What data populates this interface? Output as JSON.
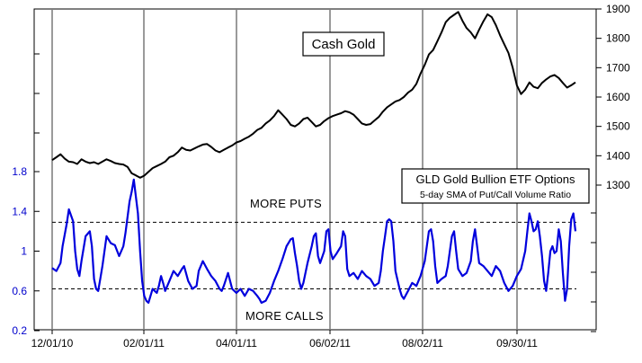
{
  "chart_data": {
    "type": "line",
    "x_tick_labels": [
      "12/01/10",
      "02/01/11",
      "04/01/11",
      "06/02/11",
      "08/02/11",
      "09/30/11"
    ],
    "gold_axis": {
      "ticks": [
        "1900",
        "1800",
        "1700",
        "1600",
        "1500",
        "1400",
        "1300"
      ],
      "ylim": [
        1300,
        1900
      ]
    },
    "ratio_axis": {
      "ticks": [
        "1.8",
        "1.4",
        "1",
        "0.6",
        "0.2"
      ],
      "ylim": [
        0.2,
        1.8
      ]
    },
    "gold_label": "Cash Gold",
    "options_title": "GLD Gold Bullion ETF Options",
    "options_subtitle": "5-day SMA of Put/Call Volume Ratio",
    "more_puts_label": "MORE PUTS",
    "more_calls_label": "MORE CALLS",
    "more_puts_level": 1.29,
    "more_calls_level": 0.62,
    "colors": {
      "gold_line": "#000000",
      "ratio_line": "#0000dd",
      "grid": "#808080",
      "ratio_tick": "#0000cc"
    },
    "series": [
      {
        "key": "gold",
        "color": "#000000",
        "points": [
          [
            0,
            1385
          ],
          [
            2,
            1395
          ],
          [
            4,
            1405
          ],
          [
            6,
            1390
          ],
          [
            8,
            1380
          ],
          [
            10,
            1378
          ],
          [
            12,
            1372
          ],
          [
            14,
            1388
          ],
          [
            16,
            1380
          ],
          [
            18,
            1375
          ],
          [
            20,
            1378
          ],
          [
            22,
            1372
          ],
          [
            24,
            1380
          ],
          [
            26,
            1388
          ],
          [
            28,
            1382
          ],
          [
            30,
            1375
          ],
          [
            32,
            1372
          ],
          [
            34,
            1370
          ],
          [
            36,
            1362
          ],
          [
            38,
            1340
          ],
          [
            40,
            1333
          ],
          [
            42,
            1325
          ],
          [
            44,
            1332
          ],
          [
            46,
            1345
          ],
          [
            48,
            1358
          ],
          [
            50,
            1365
          ],
          [
            52,
            1372
          ],
          [
            54,
            1380
          ],
          [
            56,
            1395
          ],
          [
            58,
            1400
          ],
          [
            60,
            1412
          ],
          [
            62,
            1428
          ],
          [
            64,
            1420
          ],
          [
            66,
            1418
          ],
          [
            68,
            1425
          ],
          [
            70,
            1432
          ],
          [
            72,
            1438
          ],
          [
            74,
            1440
          ],
          [
            76,
            1430
          ],
          [
            78,
            1418
          ],
          [
            80,
            1412
          ],
          [
            82,
            1420
          ],
          [
            84,
            1428
          ],
          [
            86,
            1435
          ],
          [
            88,
            1445
          ],
          [
            90,
            1450
          ],
          [
            92,
            1458
          ],
          [
            94,
            1465
          ],
          [
            96,
            1475
          ],
          [
            98,
            1488
          ],
          [
            100,
            1495
          ],
          [
            102,
            1510
          ],
          [
            104,
            1520
          ],
          [
            106,
            1535
          ],
          [
            108,
            1555
          ],
          [
            110,
            1540
          ],
          [
            112,
            1525
          ],
          [
            114,
            1505
          ],
          [
            116,
            1500
          ],
          [
            118,
            1510
          ],
          [
            120,
            1525
          ],
          [
            122,
            1530
          ],
          [
            124,
            1515
          ],
          [
            126,
            1500
          ],
          [
            128,
            1505
          ],
          [
            130,
            1518
          ],
          [
            132,
            1528
          ],
          [
            134,
            1535
          ],
          [
            136,
            1540
          ],
          [
            138,
            1545
          ],
          [
            140,
            1552
          ],
          [
            142,
            1548
          ],
          [
            144,
            1540
          ],
          [
            146,
            1525
          ],
          [
            148,
            1510
          ],
          [
            150,
            1505
          ],
          [
            152,
            1508
          ],
          [
            154,
            1520
          ],
          [
            156,
            1532
          ],
          [
            158,
            1550
          ],
          [
            160,
            1565
          ],
          [
            162,
            1575
          ],
          [
            164,
            1585
          ],
          [
            166,
            1590
          ],
          [
            168,
            1600
          ],
          [
            170,
            1615
          ],
          [
            172,
            1625
          ],
          [
            174,
            1645
          ],
          [
            176,
            1680
          ],
          [
            178,
            1710
          ],
          [
            180,
            1745
          ],
          [
            182,
            1760
          ],
          [
            184,
            1790
          ],
          [
            186,
            1820
          ],
          [
            188,
            1855
          ],
          [
            190,
            1870
          ],
          [
            192,
            1880
          ],
          [
            194,
            1890
          ],
          [
            196,
            1860
          ],
          [
            198,
            1835
          ],
          [
            200,
            1820
          ],
          [
            202,
            1800
          ],
          [
            204,
            1830
          ],
          [
            206,
            1858
          ],
          [
            208,
            1882
          ],
          [
            210,
            1872
          ],
          [
            212,
            1845
          ],
          [
            214,
            1810
          ],
          [
            216,
            1780
          ],
          [
            218,
            1750
          ],
          [
            220,
            1700
          ],
          [
            222,
            1640
          ],
          [
            224,
            1610
          ],
          [
            226,
            1625
          ],
          [
            228,
            1650
          ],
          [
            230,
            1635
          ],
          [
            232,
            1630
          ],
          [
            234,
            1648
          ],
          [
            236,
            1660
          ],
          [
            238,
            1670
          ],
          [
            240,
            1675
          ],
          [
            242,
            1665
          ],
          [
            244,
            1648
          ],
          [
            246,
            1632
          ],
          [
            248,
            1640
          ],
          [
            250,
            1650
          ]
        ]
      },
      {
        "key": "put_call_ratio",
        "color": "#0000dd",
        "points": [
          [
            0,
            0.83
          ],
          [
            2,
            0.8
          ],
          [
            4,
            0.88
          ],
          [
            5,
            1.05
          ],
          [
            7,
            1.28
          ],
          [
            8,
            1.42
          ],
          [
            10,
            1.3
          ],
          [
            11,
            1.0
          ],
          [
            12,
            0.82
          ],
          [
            13,
            0.75
          ],
          [
            14,
            0.9
          ],
          [
            16,
            1.15
          ],
          [
            18,
            1.2
          ],
          [
            19,
            1.05
          ],
          [
            20,
            0.72
          ],
          [
            21,
            0.62
          ],
          [
            22,
            0.6
          ],
          [
            23,
            0.72
          ],
          [
            24,
            0.85
          ],
          [
            25,
            1.0
          ],
          [
            26,
            1.15
          ],
          [
            28,
            1.08
          ],
          [
            30,
            1.06
          ],
          [
            32,
            0.95
          ],
          [
            34,
            1.05
          ],
          [
            35,
            1.18
          ],
          [
            37,
            1.5
          ],
          [
            38,
            1.6
          ],
          [
            39,
            1.72
          ],
          [
            40,
            1.55
          ],
          [
            41,
            1.38
          ],
          [
            42,
            1.0
          ],
          [
            43,
            0.7
          ],
          [
            44,
            0.55
          ],
          [
            45,
            0.5
          ],
          [
            46,
            0.48
          ],
          [
            47,
            0.55
          ],
          [
            48,
            0.62
          ],
          [
            49,
            0.6
          ],
          [
            50,
            0.58
          ],
          [
            51,
            0.65
          ],
          [
            52,
            0.75
          ],
          [
            53,
            0.68
          ],
          [
            54,
            0.6
          ],
          [
            56,
            0.7
          ],
          [
            58,
            0.8
          ],
          [
            60,
            0.75
          ],
          [
            62,
            0.82
          ],
          [
            63,
            0.85
          ],
          [
            65,
            0.7
          ],
          [
            67,
            0.62
          ],
          [
            69,
            0.65
          ],
          [
            70,
            0.8
          ],
          [
            72,
            0.9
          ],
          [
            74,
            0.82
          ],
          [
            76,
            0.75
          ],
          [
            78,
            0.7
          ],
          [
            80,
            0.62
          ],
          [
            81,
            0.6
          ],
          [
            82,
            0.65
          ],
          [
            84,
            0.78
          ],
          [
            86,
            0.62
          ],
          [
            88,
            0.58
          ],
          [
            90,
            0.62
          ],
          [
            92,
            0.55
          ],
          [
            94,
            0.62
          ],
          [
            96,
            0.6
          ],
          [
            98,
            0.55
          ],
          [
            99,
            0.52
          ],
          [
            100,
            0.48
          ],
          [
            102,
            0.5
          ],
          [
            104,
            0.58
          ],
          [
            106,
            0.7
          ],
          [
            108,
            0.8
          ],
          [
            110,
            0.92
          ],
          [
            112,
            1.05
          ],
          [
            114,
            1.12
          ],
          [
            115,
            1.13
          ],
          [
            116,
            0.98
          ],
          [
            117,
            0.85
          ],
          [
            118,
            0.7
          ],
          [
            119,
            0.62
          ],
          [
            120,
            0.68
          ],
          [
            122,
            0.88
          ],
          [
            124,
            1.05
          ],
          [
            125,
            1.15
          ],
          [
            126,
            1.18
          ],
          [
            127,
            0.95
          ],
          [
            128,
            0.88
          ],
          [
            130,
            1.0
          ],
          [
            131,
            1.2
          ],
          [
            132,
            1.22
          ],
          [
            133,
            1.0
          ],
          [
            134,
            0.92
          ],
          [
            136,
            0.98
          ],
          [
            138,
            1.05
          ],
          [
            139,
            1.2
          ],
          [
            140,
            1.15
          ],
          [
            141,
            0.82
          ],
          [
            142,
            0.75
          ],
          [
            144,
            0.78
          ],
          [
            146,
            0.72
          ],
          [
            148,
            0.8
          ],
          [
            150,
            0.75
          ],
          [
            152,
            0.72
          ],
          [
            154,
            0.65
          ],
          [
            156,
            0.68
          ],
          [
            157,
            0.8
          ],
          [
            158,
            1.0
          ],
          [
            159,
            1.15
          ],
          [
            160,
            1.3
          ],
          [
            161,
            1.32
          ],
          [
            162,
            1.3
          ],
          [
            163,
            1.1
          ],
          [
            164,
            0.8
          ],
          [
            166,
            0.62
          ],
          [
            167,
            0.55
          ],
          [
            168,
            0.52
          ],
          [
            170,
            0.6
          ],
          [
            172,
            0.68
          ],
          [
            174,
            0.65
          ],
          [
            176,
            0.75
          ],
          [
            178,
            0.9
          ],
          [
            179,
            1.05
          ],
          [
            180,
            1.2
          ],
          [
            181,
            1.22
          ],
          [
            182,
            1.1
          ],
          [
            183,
            0.85
          ],
          [
            184,
            0.68
          ],
          [
            186,
            0.72
          ],
          [
            188,
            0.75
          ],
          [
            189,
            0.85
          ],
          [
            190,
            1.0
          ],
          [
            191,
            1.15
          ],
          [
            192,
            1.2
          ],
          [
            193,
            1.0
          ],
          [
            194,
            0.82
          ],
          [
            196,
            0.75
          ],
          [
            198,
            0.78
          ],
          [
            200,
            0.9
          ],
          [
            201,
            1.1
          ],
          [
            202,
            1.22
          ],
          [
            203,
            1.05
          ],
          [
            204,
            0.88
          ],
          [
            206,
            0.85
          ],
          [
            208,
            0.8
          ],
          [
            210,
            0.75
          ],
          [
            212,
            0.85
          ],
          [
            214,
            0.8
          ],
          [
            216,
            0.68
          ],
          [
            218,
            0.6
          ],
          [
            220,
            0.65
          ],
          [
            222,
            0.75
          ],
          [
            224,
            0.82
          ],
          [
            226,
            1.0
          ],
          [
            227,
            1.2
          ],
          [
            228,
            1.38
          ],
          [
            229,
            1.3
          ],
          [
            230,
            1.2
          ],
          [
            231,
            1.22
          ],
          [
            232,
            1.3
          ],
          [
            233,
            1.15
          ],
          [
            234,
            0.95
          ],
          [
            235,
            0.7
          ],
          [
            236,
            0.6
          ],
          [
            237,
            0.78
          ],
          [
            238,
            1.0
          ],
          [
            239,
            1.05
          ],
          [
            240,
            0.98
          ],
          [
            241,
            1.0
          ],
          [
            242,
            1.22
          ],
          [
            243,
            1.1
          ],
          [
            244,
            0.78
          ],
          [
            245,
            0.5
          ],
          [
            246,
            0.62
          ],
          [
            247,
            1.05
          ],
          [
            248,
            1.32
          ],
          [
            249,
            1.38
          ],
          [
            250,
            1.2
          ]
        ]
      }
    ]
  }
}
